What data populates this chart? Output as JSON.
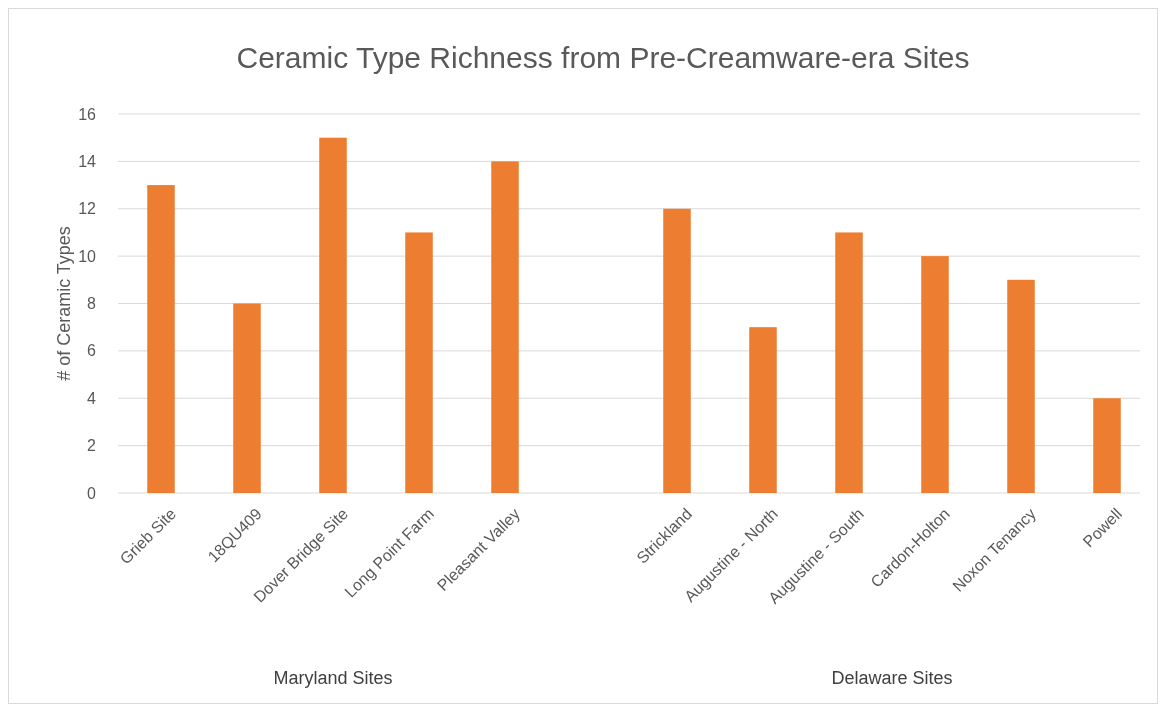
{
  "chart_data": {
    "type": "bar",
    "title": "Ceramic Type Richness from Pre-Creamware-era Sites",
    "ylabel": "# of Ceramic Types",
    "categories": [
      "Grieb Site",
      "18QU409",
      "Dover Bridge Site",
      "Long Point Farm",
      "Pleasant Valley",
      null,
      "Strickland",
      "Augustine - North",
      "Augustine - South",
      "Cardon-Holton",
      "Noxon Tenancy",
      "Powell"
    ],
    "values": [
      13,
      8,
      15,
      11,
      14,
      null,
      12,
      7,
      11,
      10,
      9,
      4
    ],
    "color": "#ed7d31",
    "ylim": [
      0,
      16
    ],
    "yticks": [
      0,
      2,
      4,
      6,
      8,
      10,
      12,
      14,
      16
    ],
    "grid": "y",
    "annotations": [
      "Maryland Sites",
      "Delaware Sites"
    ]
  }
}
